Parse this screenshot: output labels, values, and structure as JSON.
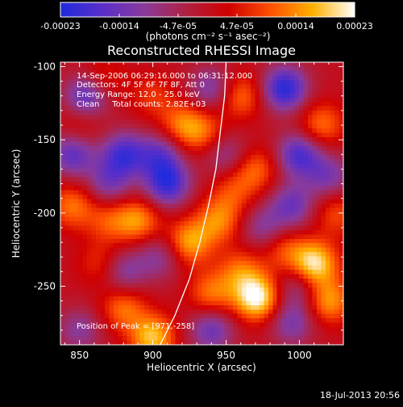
{
  "chart_data": {
    "type": "heatmap",
    "title": "Reconstructed RHESSI Image",
    "xlabel": "Heliocentric X (arcsec)",
    "ylabel": "Heliocentric Y (arcsec)",
    "xlim": [
      837,
      1030
    ],
    "ylim": [
      -290,
      -97
    ],
    "x_ticks": [
      850,
      900,
      950,
      1000
    ],
    "y_ticks": [
      -100,
      -150,
      -200,
      -250
    ],
    "colorbar": {
      "label": "(photons cm⁻² s⁻¹ asec⁻²)",
      "ticks": [
        "-0.00023",
        "-0.00014",
        "-4.7e-05",
        "4.7e-05",
        "0.00014",
        "0.00023"
      ],
      "range": [
        -0.00023,
        0.00023
      ],
      "colors": [
        "#1f2bdc",
        "#5a2ec8",
        "#8a3a9a",
        "#b02040",
        "#d00000",
        "#ff5000",
        "#ffb000",
        "#ffffff"
      ]
    },
    "annotations": {
      "time": "14-Sep-2006 06:29:16.000 to 06:31:12.000",
      "detectors": "Detectors: 4F 5F 6F 7F 8F, Att 0",
      "energy": "Energy Range: 12.0 - 25.0 keV",
      "clean": "Clean     Total counts: 2.82E+03",
      "peak": "Position of Peak = [971,-258]"
    },
    "sources": [
      {
        "x": 865,
        "y": -110,
        "a": 8e-05
      },
      {
        "x": 900,
        "y": -120,
        "a": 7e-05
      },
      {
        "x": 920,
        "y": -140,
        "a": 0.00012
      },
      {
        "x": 850,
        "y": -140,
        "a": 6e-05
      },
      {
        "x": 845,
        "y": -195,
        "a": 0.00012
      },
      {
        "x": 870,
        "y": -205,
        "a": 9e-05
      },
      {
        "x": 890,
        "y": -205,
        "a": 0.00014
      },
      {
        "x": 935,
        "y": -145,
        "a": 0.0001
      },
      {
        "x": 960,
        "y": -120,
        "a": 0.00012
      },
      {
        "x": 970,
        "y": -170,
        "a": 0.00011
      },
      {
        "x": 955,
        "y": -185,
        "a": 8e-05
      },
      {
        "x": 1015,
        "y": -140,
        "a": 0.00012
      },
      {
        "x": 1025,
        "y": -200,
        "a": 9e-05
      },
      {
        "x": 925,
        "y": -220,
        "a": 0.00016
      },
      {
        "x": 945,
        "y": -205,
        "a": 0.00013
      },
      {
        "x": 960,
        "y": -240,
        "a": 0.00011
      },
      {
        "x": 940,
        "y": -255,
        "a": 0.00012
      },
      {
        "x": 971,
        "y": -258,
        "a": 0.00023
      },
      {
        "x": 1010,
        "y": -235,
        "a": 0.00022
      },
      {
        "x": 1020,
        "y": -260,
        "a": 0.00015
      },
      {
        "x": 880,
        "y": -265,
        "a": 0.00012
      },
      {
        "x": 900,
        "y": -285,
        "a": 0.00018
      },
      {
        "x": 865,
        "y": -235,
        "a": 8e-05
      },
      {
        "x": 990,
        "y": -225,
        "a": 9e-05
      },
      {
        "x": 855,
        "y": -120,
        "a": -0.00018
      },
      {
        "x": 880,
        "y": -160,
        "a": -0.00018
      },
      {
        "x": 905,
        "y": -160,
        "a": -0.00014
      },
      {
        "x": 845,
        "y": -160,
        "a": -0.00016
      },
      {
        "x": 990,
        "y": -115,
        "a": -0.00022
      },
      {
        "x": 1000,
        "y": -160,
        "a": -0.00018
      },
      {
        "x": 940,
        "y": -115,
        "a": -0.00012
      },
      {
        "x": 950,
        "y": -160,
        "a": -0.0001
      },
      {
        "x": 910,
        "y": -180,
        "a": -0.0002
      },
      {
        "x": 870,
        "y": -180,
        "a": -0.00012
      },
      {
        "x": 995,
        "y": -195,
        "a": -0.00014
      },
      {
        "x": 1020,
        "y": -175,
        "a": -0.00012
      },
      {
        "x": 905,
        "y": -230,
        "a": -0.0001
      },
      {
        "x": 880,
        "y": -240,
        "a": -0.00012
      },
      {
        "x": 975,
        "y": -210,
        "a": -0.0001
      },
      {
        "x": 940,
        "y": -280,
        "a": -0.00014
      },
      {
        "x": 995,
        "y": -275,
        "a": -0.00012
      },
      {
        "x": 850,
        "y": -280,
        "a": -0.0001
      },
      {
        "x": 1000,
        "y": -250,
        "a": -0.0001
      }
    ],
    "limb_curve": [
      [
        905,
        -290
      ],
      [
        915,
        -270
      ],
      [
        925,
        -245
      ],
      [
        932,
        -220
      ],
      [
        938,
        -195
      ],
      [
        943,
        -170
      ],
      [
        946,
        -145
      ],
      [
        949,
        -120
      ],
      [
        950,
        -97
      ]
    ]
  },
  "footer_date": "18-Jul-2013 20:56"
}
